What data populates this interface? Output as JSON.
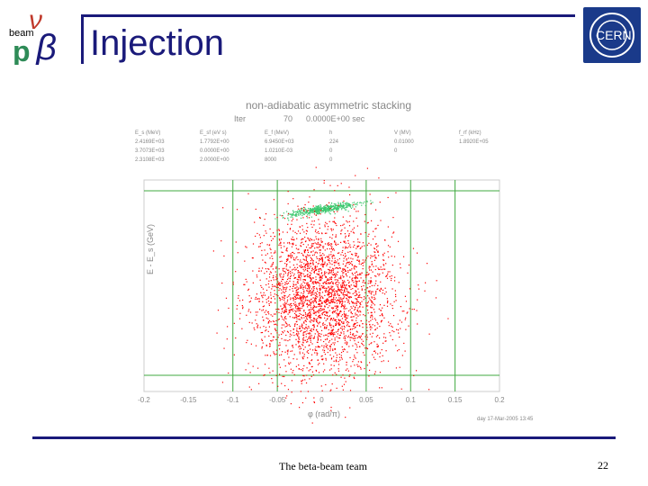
{
  "header": {
    "title": "Injection",
    "logo_left_text": "beam",
    "logo_right_text": "CERN"
  },
  "plot": {
    "title": "non-adiabatic asymmetric stacking",
    "iter_label": "Iter",
    "iter_value": "70",
    "time_value": "0.0000E+00 sec",
    "param_cols": [
      {
        "header": "E_s (MeV)",
        "values": [
          "2.4169E+03",
          "3.7073E+03",
          "2.3108E+03"
        ]
      },
      {
        "header": "E_sf (eV s)",
        "values": [
          "1.7792E+00",
          "0.0000E+00",
          "2.0000E+00"
        ]
      },
      {
        "header": "E_f (MeV)",
        "values": [
          "6.9450E+03",
          "1.0210E-03",
          "8000"
        ]
      },
      {
        "header": "h",
        "values": [
          "224",
          "0",
          "0"
        ]
      },
      {
        "header": "V (MV)",
        "values": [
          "0.01000",
          "0",
          ""
        ]
      },
      {
        "header": "f_rf (kHz)",
        "values": [
          "1.8920E+05",
          "",
          ""
        ]
      }
    ],
    "y_label": "E - E_s (GeV)",
    "x_label": "φ (rad/π)",
    "footnote": "day 17-Mar-2005 13:45",
    "colors": {
      "stacked": "#ff0000",
      "injected": "#3cc86e",
      "grid": "#3fa83f"
    }
  },
  "chart_data": {
    "type": "scatter",
    "title": "non-adiabatic asymmetric stacking",
    "xlabel": "φ (rad/π)",
    "ylabel": "E - E_s (GeV)",
    "xlim": [
      -0.2,
      0.2
    ],
    "x_ticks": [
      "-0.2",
      "-0.15",
      "-0.1",
      "-0.05",
      "0",
      "0.05",
      "0.1",
      "0.15",
      "0.2"
    ],
    "series": [
      {
        "name": "",
        "color": "#3cc86e",
        "center": [
          0.0,
          0.9
        ],
        "spread": [
          0.02,
          0.03
        ],
        "count": 500
      },
      {
        "name": "",
        "color": "#ff0000",
        "center": [
          0.0,
          0.0
        ],
        "spread": [
          0.04,
          0.4
        ],
        "count": 3000
      }
    ]
  },
  "footer": {
    "team": "The beta-beam team",
    "page": "22"
  }
}
